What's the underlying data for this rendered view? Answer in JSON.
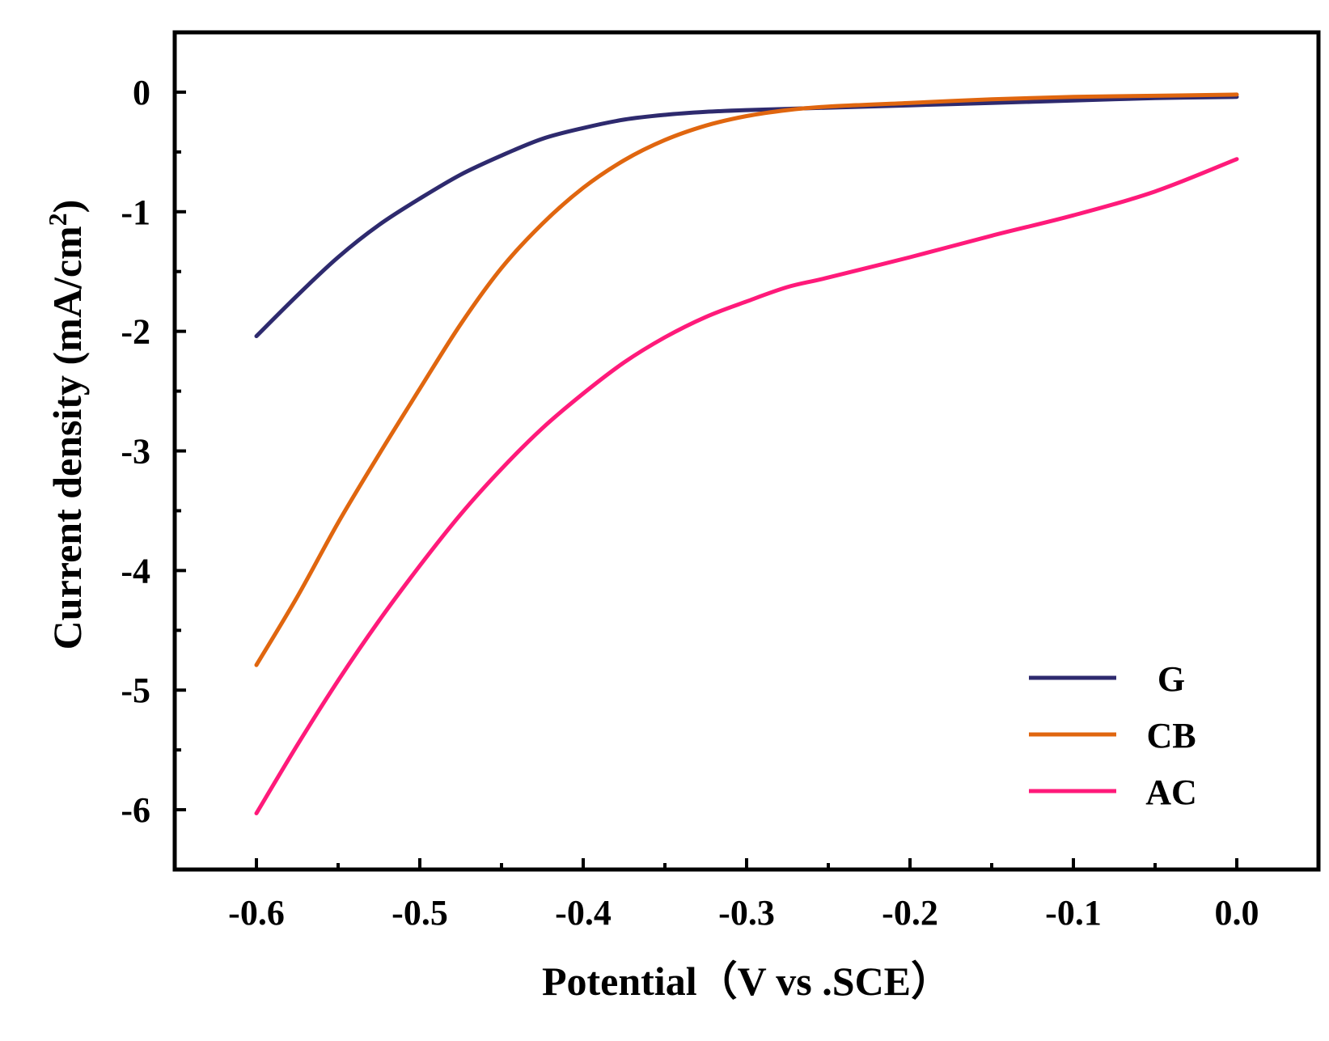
{
  "chart_data": {
    "type": "line",
    "title": "",
    "xlabel": "Potential（V vs .SCE）",
    "ylabel": "Current density (mA/cm²)",
    "ylabel_main": "Current density (mA/cm",
    "ylabel_sup": "2",
    "ylabel_close": ")",
    "xlim": [
      -0.65,
      0.05
    ],
    "ylim": [
      -6.5,
      0.5
    ],
    "x_ticks": [
      -0.6,
      -0.5,
      -0.4,
      -0.3,
      -0.2,
      -0.1,
      0.0
    ],
    "x_tick_labels": [
      "-0.6",
      "-0.5",
      "-0.4",
      "-0.3",
      "-0.2",
      "-0.1",
      "0.0"
    ],
    "y_ticks": [
      0,
      -1,
      -2,
      -3,
      -4,
      -5,
      -6
    ],
    "y_tick_labels": [
      "0",
      "-1",
      "-2",
      "-3",
      "-4",
      "-5",
      "-6"
    ],
    "grid": false,
    "legend_position": "bottom-right",
    "series": [
      {
        "name": "G",
        "color": "#2e2a6e",
        "x": [
          -0.6,
          -0.575,
          -0.55,
          -0.525,
          -0.5,
          -0.475,
          -0.45,
          -0.425,
          -0.4,
          -0.375,
          -0.35,
          -0.325,
          -0.3,
          -0.275,
          -0.25,
          -0.2,
          -0.15,
          -0.1,
          -0.05,
          0.0
        ],
        "y": [
          -2.04,
          -1.7,
          -1.38,
          -1.11,
          -0.89,
          -0.69,
          -0.53,
          -0.39,
          -0.3,
          -0.23,
          -0.19,
          -0.165,
          -0.15,
          -0.14,
          -0.13,
          -0.11,
          -0.09,
          -0.07,
          -0.05,
          -0.04
        ]
      },
      {
        "name": "CB",
        "color": "#e0660f",
        "x": [
          -0.6,
          -0.575,
          -0.55,
          -0.525,
          -0.5,
          -0.475,
          -0.45,
          -0.425,
          -0.4,
          -0.375,
          -0.35,
          -0.325,
          -0.3,
          -0.275,
          -0.25,
          -0.2,
          -0.15,
          -0.1,
          -0.05,
          0.0
        ],
        "y": [
          -4.79,
          -4.22,
          -3.6,
          -3.03,
          -2.48,
          -1.94,
          -1.47,
          -1.1,
          -0.8,
          -0.57,
          -0.4,
          -0.28,
          -0.2,
          -0.15,
          -0.12,
          -0.09,
          -0.06,
          -0.04,
          -0.03,
          -0.02
        ]
      },
      {
        "name": "AC",
        "color": "#ff1a7a",
        "x": [
          -0.6,
          -0.575,
          -0.55,
          -0.525,
          -0.5,
          -0.475,
          -0.45,
          -0.425,
          -0.4,
          -0.375,
          -0.35,
          -0.325,
          -0.3,
          -0.275,
          -0.25,
          -0.2,
          -0.15,
          -0.1,
          -0.05,
          0.0
        ],
        "y": [
          -6.03,
          -5.46,
          -4.92,
          -4.42,
          -3.96,
          -3.53,
          -3.15,
          -2.81,
          -2.52,
          -2.26,
          -2.05,
          -1.88,
          -1.75,
          -1.63,
          -1.55,
          -1.38,
          -1.2,
          -1.03,
          -0.83,
          -0.56
        ]
      }
    ]
  }
}
